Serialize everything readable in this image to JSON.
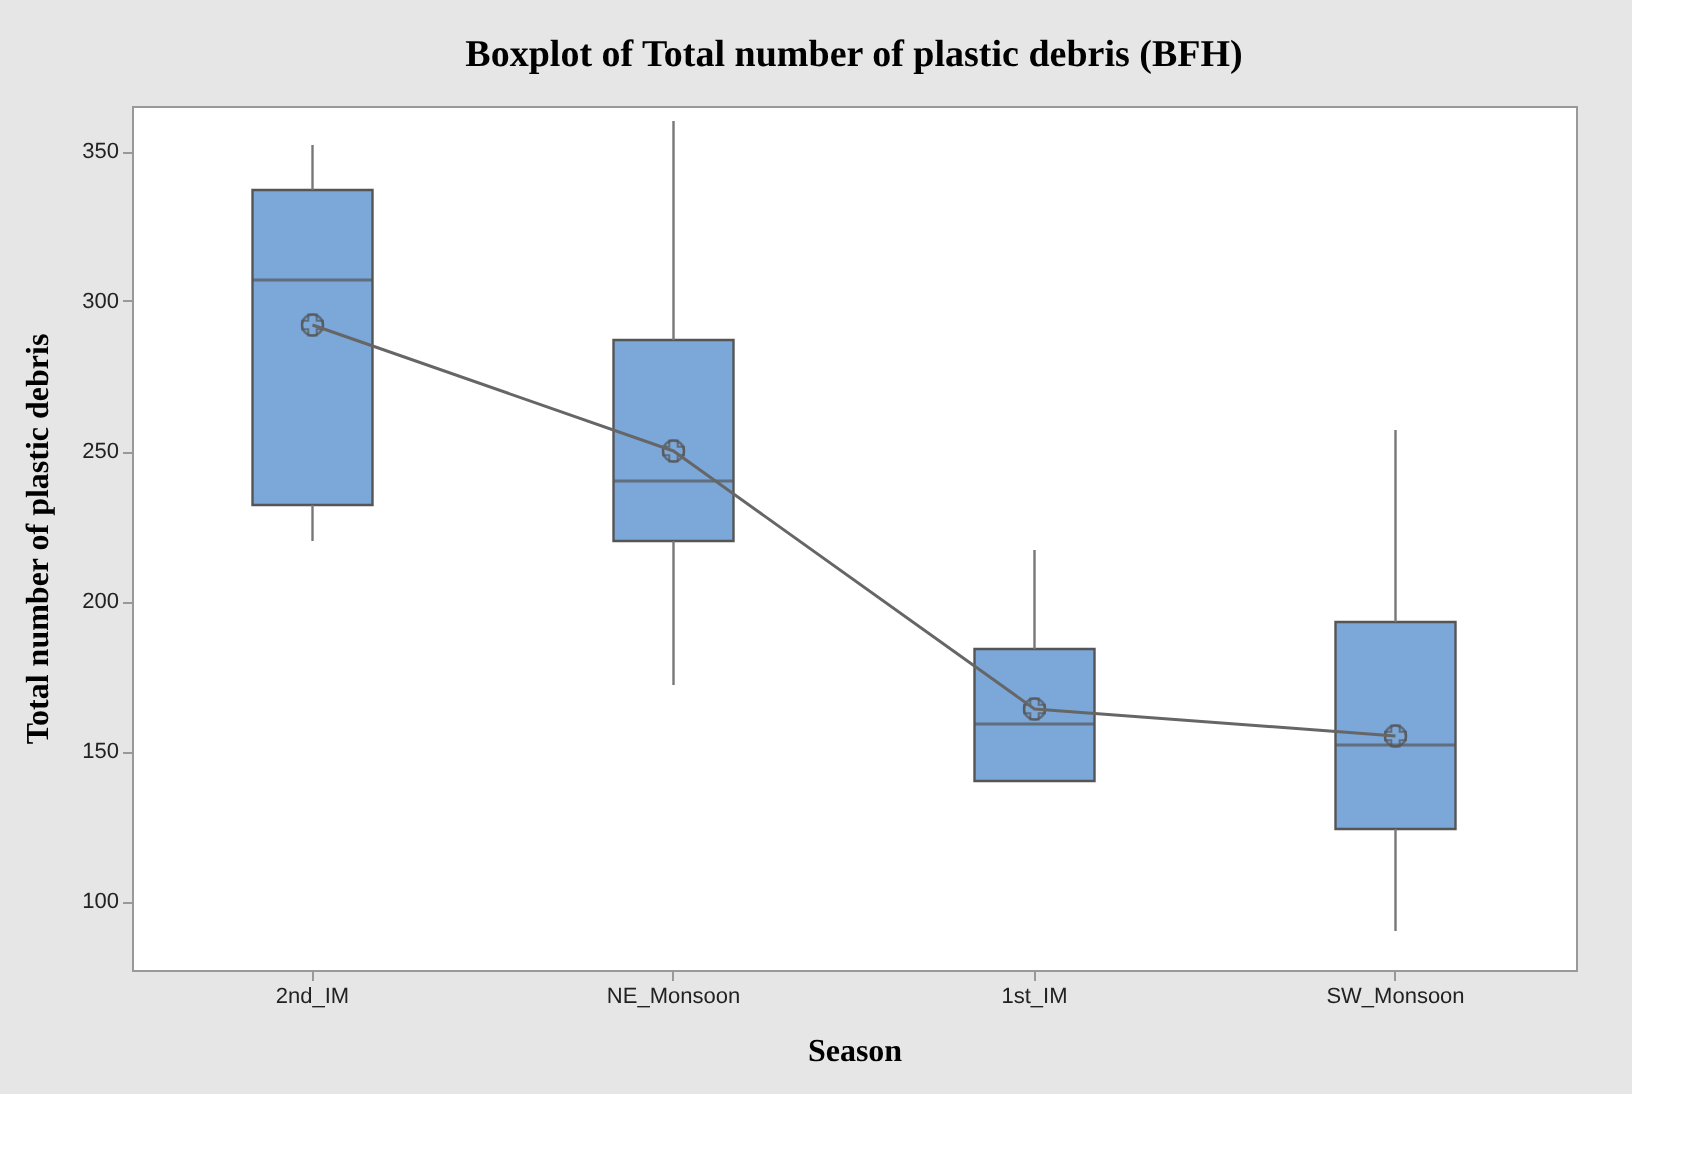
{
  "chart_data": {
    "type": "box",
    "title": "Boxplot of Total number of plastic debris (BFH)",
    "xlabel": "Season",
    "ylabel": "Total number of plastic debris",
    "categories": [
      "2nd_IM",
      "NE_Monsoon",
      "1st_IM",
      "SW_Monsoon"
    ],
    "ylim": [
      77,
      365
    ],
    "yticks": [
      100,
      150,
      200,
      250,
      300,
      350
    ],
    "grid": false,
    "series": [
      {
        "color": "#7ba7d9",
        "boxes": [
          {
            "low": 220,
            "q1": 232,
            "median": 307,
            "q3": 337,
            "high": 352,
            "mean": 292
          },
          {
            "low": 172,
            "q1": 220,
            "median": 240,
            "q3": 287,
            "high": 360,
            "mean": 250
          },
          {
            "low": 140,
            "q1": 140,
            "median": 159,
            "q3": 184,
            "high": 217,
            "mean": 164
          },
          {
            "low": 90,
            "q1": 124,
            "median": 152,
            "q3": 193,
            "high": 257,
            "mean": 155
          }
        ]
      },
      {
        "type": "line",
        "color": "#666666",
        "values": [
          292,
          250,
          164,
          155
        ],
        "marker": "none",
        "line_style": "solid"
      }
    ]
  }
}
